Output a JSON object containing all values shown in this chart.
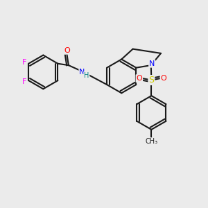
{
  "background_color": "#ebebeb",
  "line_color": "#1a1a1a",
  "bond_width": 1.5,
  "atom_colors": {
    "F": "#ff00ff",
    "O": "#ff0000",
    "N": "#0000ff",
    "S": "#cccc00",
    "C": "#1a1a1a",
    "H": "#008080"
  },
  "font_size": 7
}
